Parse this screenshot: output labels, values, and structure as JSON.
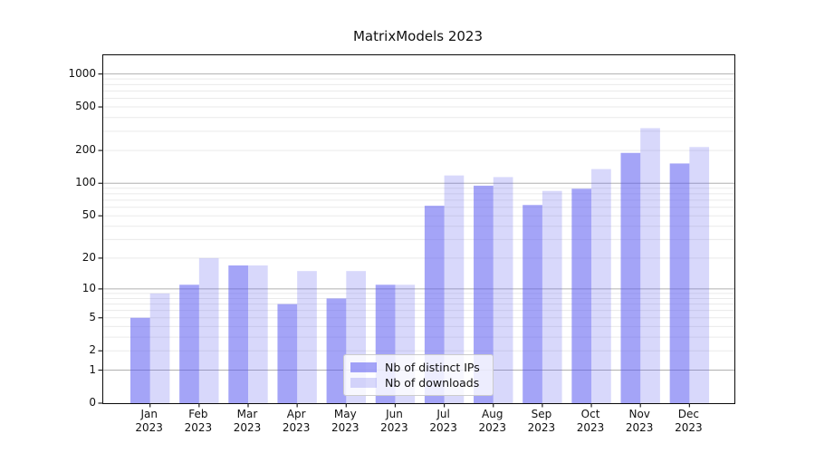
{
  "chart_data": {
    "type": "bar",
    "title": "MatrixModels 2023",
    "categories": [
      "Jan",
      "Feb",
      "Mar",
      "Apr",
      "May",
      "Jun",
      "Jul",
      "Aug",
      "Sep",
      "Oct",
      "Nov",
      "Dec"
    ],
    "year_label": "2023",
    "series": [
      {
        "name": "Nb of distinct IPs",
        "fill": "rgba(90,90,240,0.55)",
        "values": [
          5,
          11,
          17,
          7,
          8,
          11,
          62,
          95,
          63,
          89,
          190,
          152
        ]
      },
      {
        "name": "Nb of downloads",
        "fill": "rgba(90,90,240,0.24)",
        "values": [
          9,
          20,
          17,
          15,
          15,
          11,
          118,
          114,
          85,
          135,
          320,
          215
        ]
      }
    ],
    "yscale": "log1p",
    "yticks": [
      1000,
      500,
      200,
      100,
      50,
      20,
      10,
      5,
      2,
      1,
      0
    ],
    "ylim": [
      0,
      1480
    ],
    "xlabel": "",
    "ylabel": "",
    "grid": {
      "enabled": "both",
      "major_color": "#b0b0b0",
      "minor_color": "#eaeaea"
    },
    "spine_color": "#0a0a0a",
    "tick_color": "#222222",
    "legend_position": "lower-center-inside"
  }
}
